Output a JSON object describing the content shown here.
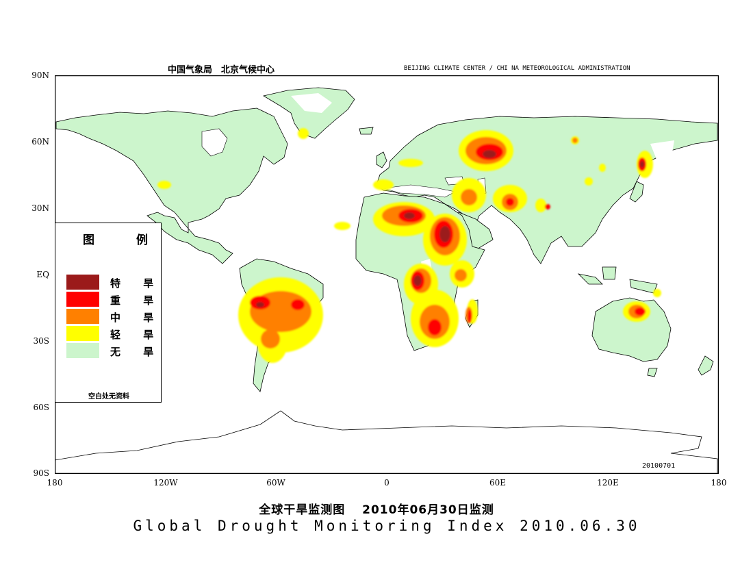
{
  "header": {
    "left_cn": "中国气象局　北京气候中心",
    "right_en": "BEIJING CLIMATE CENTER / CHI NA METEOROLOGICAL ADMINISTRATION"
  },
  "axes": {
    "lat_labels": [
      "90N",
      "60N",
      "30N",
      "EQ",
      "30S",
      "60S",
      "90S"
    ],
    "lon_labels": [
      "180",
      "120W",
      "60W",
      "0",
      "60E",
      "120E",
      "180"
    ]
  },
  "legend": {
    "title": "图　例",
    "items": [
      {
        "label": "特 旱",
        "color": "#9b1a1a"
      },
      {
        "label": "重 旱",
        "color": "#ff0000"
      },
      {
        "label": "中 旱",
        "color": "#ff8000"
      },
      {
        "label": "轻 旱",
        "color": "#ffff00"
      },
      {
        "label": "无 旱",
        "color": "#ccf5cc"
      }
    ],
    "note": "空白处无资料"
  },
  "date_stamp": "20100701",
  "title": {
    "cn": "全球干旱监测图　 2010年06月30日监测",
    "en": "Global Drought Monitoring Index 2010.06.30"
  }
}
